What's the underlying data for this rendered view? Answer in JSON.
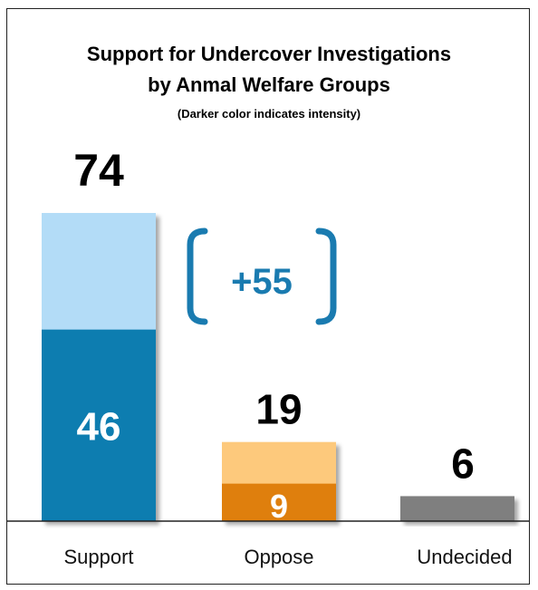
{
  "chart_data": {
    "type": "bar",
    "title": "Support for Undercover Investigations",
    "title_line2": "by Anmal Welfare Groups",
    "subtitle": "(Darker color indicates intensity)",
    "categories": [
      "Support",
      "Oppose",
      "Undecided"
    ],
    "total_values": [
      74,
      19,
      6
    ],
    "intense_values": [
      46,
      9,
      null
    ],
    "margin_label": "+55",
    "ylim": [
      0,
      80
    ],
    "grid": false,
    "colors": {
      "support_light": "#b3dcf7",
      "support_dark": "#0e7db0",
      "oppose_light": "#fdc97c",
      "oppose_dark": "#df7f08",
      "undecided": "#7f7f7f",
      "bracket": "#1a7bb0"
    }
  }
}
